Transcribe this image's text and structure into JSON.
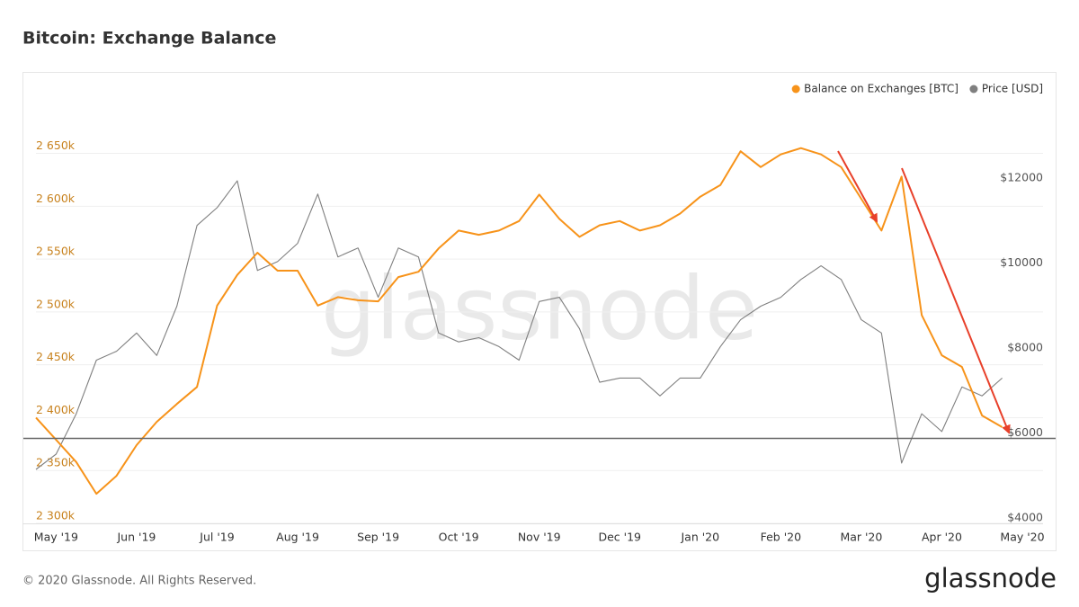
{
  "chart_data": {
    "type": "line",
    "title": "Bitcoin: Exchange Balance",
    "categories": [
      null,
      "May '19",
      null,
      null,
      null,
      "Jun '19",
      null,
      null,
      null,
      "Jul '19",
      null,
      null,
      null,
      "Aug '19",
      null,
      null,
      null,
      "Sep '19",
      null,
      null,
      null,
      "Oct '19",
      null,
      null,
      null,
      "Nov '19",
      null,
      null,
      null,
      "Dec '19",
      null,
      null,
      null,
      "Jan '20",
      null,
      null,
      null,
      "Feb '20",
      null,
      null,
      null,
      "Mar '20",
      null,
      null,
      null,
      "Apr '20",
      null,
      null,
      null,
      "May '20"
    ],
    "series": [
      {
        "name": "Balance on Exchanges [BTC]",
        "color": "#f7931a",
        "axis": "y",
        "values": [
          2400000,
          2379000,
          2358000,
          2328000,
          2345000,
          2374000,
          2396000,
          2413000,
          2429000,
          2506000,
          2535000,
          2556000,
          2539000,
          2539000,
          2506000,
          2514000,
          2511000,
          2510000,
          2533000,
          2538000,
          2560000,
          2577000,
          2573000,
          2577000,
          2586000,
          2611000,
          2588000,
          2571000,
          2582000,
          2586000,
          2577000,
          2582000,
          2593000,
          2609000,
          2620000,
          2652000,
          2637000,
          2649000,
          2655000,
          2649000,
          2637000,
          2607000,
          2577000,
          2628000,
          2497000,
          2459000,
          2448000,
          2402000,
          2391000,
          null
        ]
      },
      {
        "name": "Price [USD]",
        "color": "#7f7f7f",
        "axis": "y2",
        "values": [
          5270,
          5630,
          6580,
          7840,
          8050,
          8480,
          7950,
          9110,
          11010,
          11430,
          12060,
          9950,
          10160,
          10590,
          11750,
          10270,
          10480,
          9320,
          10480,
          10270,
          8480,
          8270,
          8370,
          8160,
          7840,
          9220,
          9320,
          8580,
          7320,
          7420,
          7420,
          7000,
          7420,
          7420,
          8160,
          8790,
          9110,
          9320,
          9740,
          10060,
          9740,
          8790,
          8480,
          5420,
          6580,
          6160,
          7210,
          7000,
          7420,
          null
        ]
      }
    ],
    "ylim": [
      2300000,
      2710000
    ],
    "yticks": [
      {
        "value": 2300000,
        "label": "2 300k"
      },
      {
        "value": 2350000,
        "label": "2 350k"
      },
      {
        "value": 2400000,
        "label": "2 400k"
      },
      {
        "value": 2450000,
        "label": "2 450k"
      },
      {
        "value": 2500000,
        "label": "2 500k"
      },
      {
        "value": 2550000,
        "label": "2 550k"
      },
      {
        "value": 2600000,
        "label": "2 600k"
      },
      {
        "value": 2650000,
        "label": "2 650k"
      }
    ],
    "y2lim": [
      4000,
      14200
    ],
    "y2ticks": [
      {
        "value": 4000,
        "label": "$4000"
      },
      {
        "value": 6000,
        "label": "$6000"
      },
      {
        "value": 8000,
        "label": "$8000"
      },
      {
        "value": 10000,
        "label": "$10000"
      },
      {
        "value": 12000,
        "label": "$12000"
      }
    ],
    "reference_line": {
      "value": 6000,
      "axis": "y2",
      "color": "#666666"
    },
    "grid": true,
    "legend": "top-right",
    "watermark": "glassnode",
    "footer": "© 2020 Glassnode. All Rights Reserved.",
    "logo": "glassnode"
  }
}
